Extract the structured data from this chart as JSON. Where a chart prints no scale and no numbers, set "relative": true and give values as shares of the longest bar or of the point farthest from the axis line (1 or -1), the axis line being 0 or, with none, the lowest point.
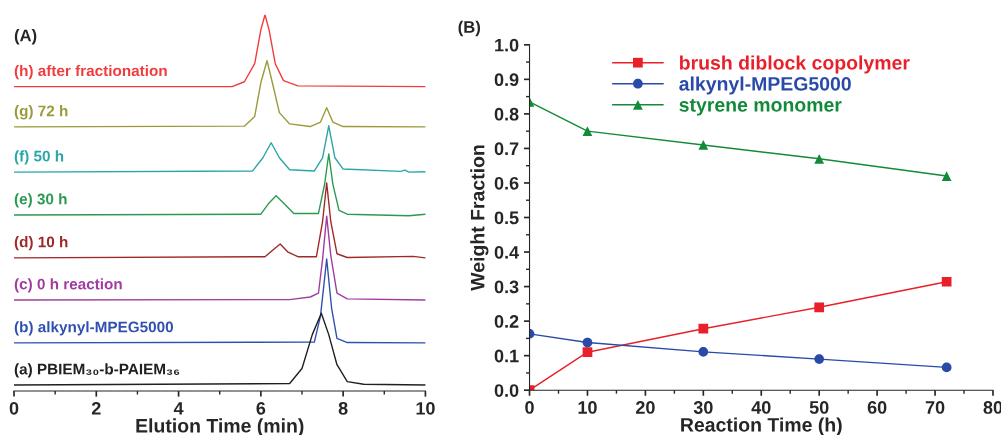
{
  "chart_data": [
    {
      "type": "line",
      "title": "(A)",
      "xlabel": "Elution Time (min)",
      "relative": true,
      "xlim": [
        0,
        10
      ],
      "xticks": [
        0,
        2,
        4,
        6,
        8,
        10
      ],
      "tick_labels": "x",
      "legend": false,
      "grid": false,
      "series": [
        {
          "name": "(h) after fractionation",
          "color": "#f03c3c",
          "x": [
            0,
            5.3,
            5.6,
            5.85,
            6.0,
            6.1,
            6.2,
            6.35,
            6.55,
            6.9,
            10
          ],
          "values": [
            0.809,
            0.809,
            0.822,
            0.87,
            0.96,
            1.0,
            0.96,
            0.87,
            0.825,
            0.811,
            0.809
          ]
        },
        {
          "name": "(g) 72 h",
          "color": "#9a9a3a",
          "x": [
            0,
            5.6,
            5.85,
            6.0,
            6.15,
            6.3,
            6.45,
            6.7,
            7.2,
            7.45,
            7.6,
            7.75,
            8.0,
            10
          ],
          "values": [
            0.702,
            0.704,
            0.73,
            0.82,
            0.878,
            0.81,
            0.74,
            0.71,
            0.703,
            0.715,
            0.753,
            0.715,
            0.703,
            0.702
          ]
        },
        {
          "name": "(f) 50 h",
          "color": "#2aa6a8",
          "x": [
            0,
            5.8,
            6.05,
            6.25,
            6.45,
            6.7,
            7.3,
            7.5,
            7.65,
            7.8,
            8.0,
            9.4,
            9.5,
            9.6,
            10
          ],
          "values": [
            0.582,
            0.585,
            0.62,
            0.66,
            0.62,
            0.588,
            0.585,
            0.62,
            0.705,
            0.62,
            0.59,
            0.584,
            0.587,
            0.582,
            0.583
          ]
        },
        {
          "name": "(e) 30 h",
          "color": "#2a9a50",
          "x": [
            0,
            6.0,
            6.2,
            6.37,
            6.55,
            6.8,
            7.4,
            7.55,
            7.65,
            7.75,
            7.9,
            8.1,
            9.6,
            10
          ],
          "values": [
            0.468,
            0.47,
            0.5,
            0.519,
            0.5,
            0.472,
            0.472,
            0.55,
            0.63,
            0.55,
            0.48,
            0.47,
            0.466,
            0.47
          ]
        },
        {
          "name": "(d) 10 h",
          "color": "#a02828",
          "x": [
            0,
            6.1,
            6.35,
            6.47,
            6.65,
            6.9,
            7.35,
            7.5,
            7.6,
            7.7,
            7.85,
            8.1,
            9.7,
            10
          ],
          "values": [
            0.354,
            0.357,
            0.38,
            0.391,
            0.37,
            0.357,
            0.357,
            0.45,
            0.553,
            0.45,
            0.365,
            0.355,
            0.358,
            0.354
          ]
        },
        {
          "name": "(c) 0 h reaction",
          "color": "#a03ca0",
          "x": [
            0,
            6.7,
            7.2,
            7.4,
            7.5,
            7.6,
            7.7,
            7.85,
            8.1,
            10
          ],
          "values": [
            0.242,
            0.243,
            0.25,
            0.26,
            0.35,
            0.465,
            0.36,
            0.26,
            0.245,
            0.242
          ]
        },
        {
          "name": "(b) alkynyl-MPEG5000",
          "color": "#3050b0",
          "x": [
            0,
            7.3,
            7.45,
            7.6,
            7.72,
            7.85,
            8.1,
            10
          ],
          "values": [
            0.128,
            0.13,
            0.2,
            0.351,
            0.22,
            0.14,
            0.129,
            0.128
          ]
        },
        {
          "name": "(a) PBIEM₃₀-b-PAIEM₃₆",
          "color": "#202020",
          "x": [
            0,
            6.7,
            7.0,
            7.25,
            7.47,
            7.65,
            7.85,
            8.1,
            8.5,
            10
          ],
          "values": [
            0.016,
            0.02,
            0.06,
            0.15,
            0.207,
            0.15,
            0.07,
            0.025,
            0.018,
            0.016
          ]
        }
      ]
    },
    {
      "type": "line",
      "title": "(B)",
      "xlabel": "Reaction Time (h)",
      "ylabel": "Weight Fraction",
      "xlim": [
        0,
        80
      ],
      "xticks": [
        0,
        10,
        20,
        30,
        40,
        50,
        60,
        70,
        80
      ],
      "ylim": [
        0,
        1.0
      ],
      "yticks": [
        {
          "value": 0,
          "label": "0.0"
        },
        0.1,
        0.2,
        0.3,
        0.4,
        0.5,
        0.6,
        0.7,
        0.8,
        0.9,
        {
          "value": 1.0,
          "label": "1.0"
        }
      ],
      "legend": "top",
      "grid": false,
      "x": [
        0,
        10,
        30,
        50,
        72
      ],
      "series": [
        {
          "name": "brush diblock copolymer",
          "color": "#e8202a",
          "marker": "square",
          "values": [
            0.0,
            0.11,
            0.178,
            0.24,
            0.314
          ]
        },
        {
          "name": "alkynyl-MPEG5000",
          "color": "#2a4aa8",
          "marker": "circle",
          "values": [
            0.163,
            0.138,
            0.111,
            0.09,
            0.066
          ]
        },
        {
          "name": "styrene monomer",
          "color": "#138a3a",
          "marker": "triangle",
          "values": [
            0.835,
            0.75,
            0.71,
            0.67,
            0.62
          ]
        }
      ]
    }
  ]
}
